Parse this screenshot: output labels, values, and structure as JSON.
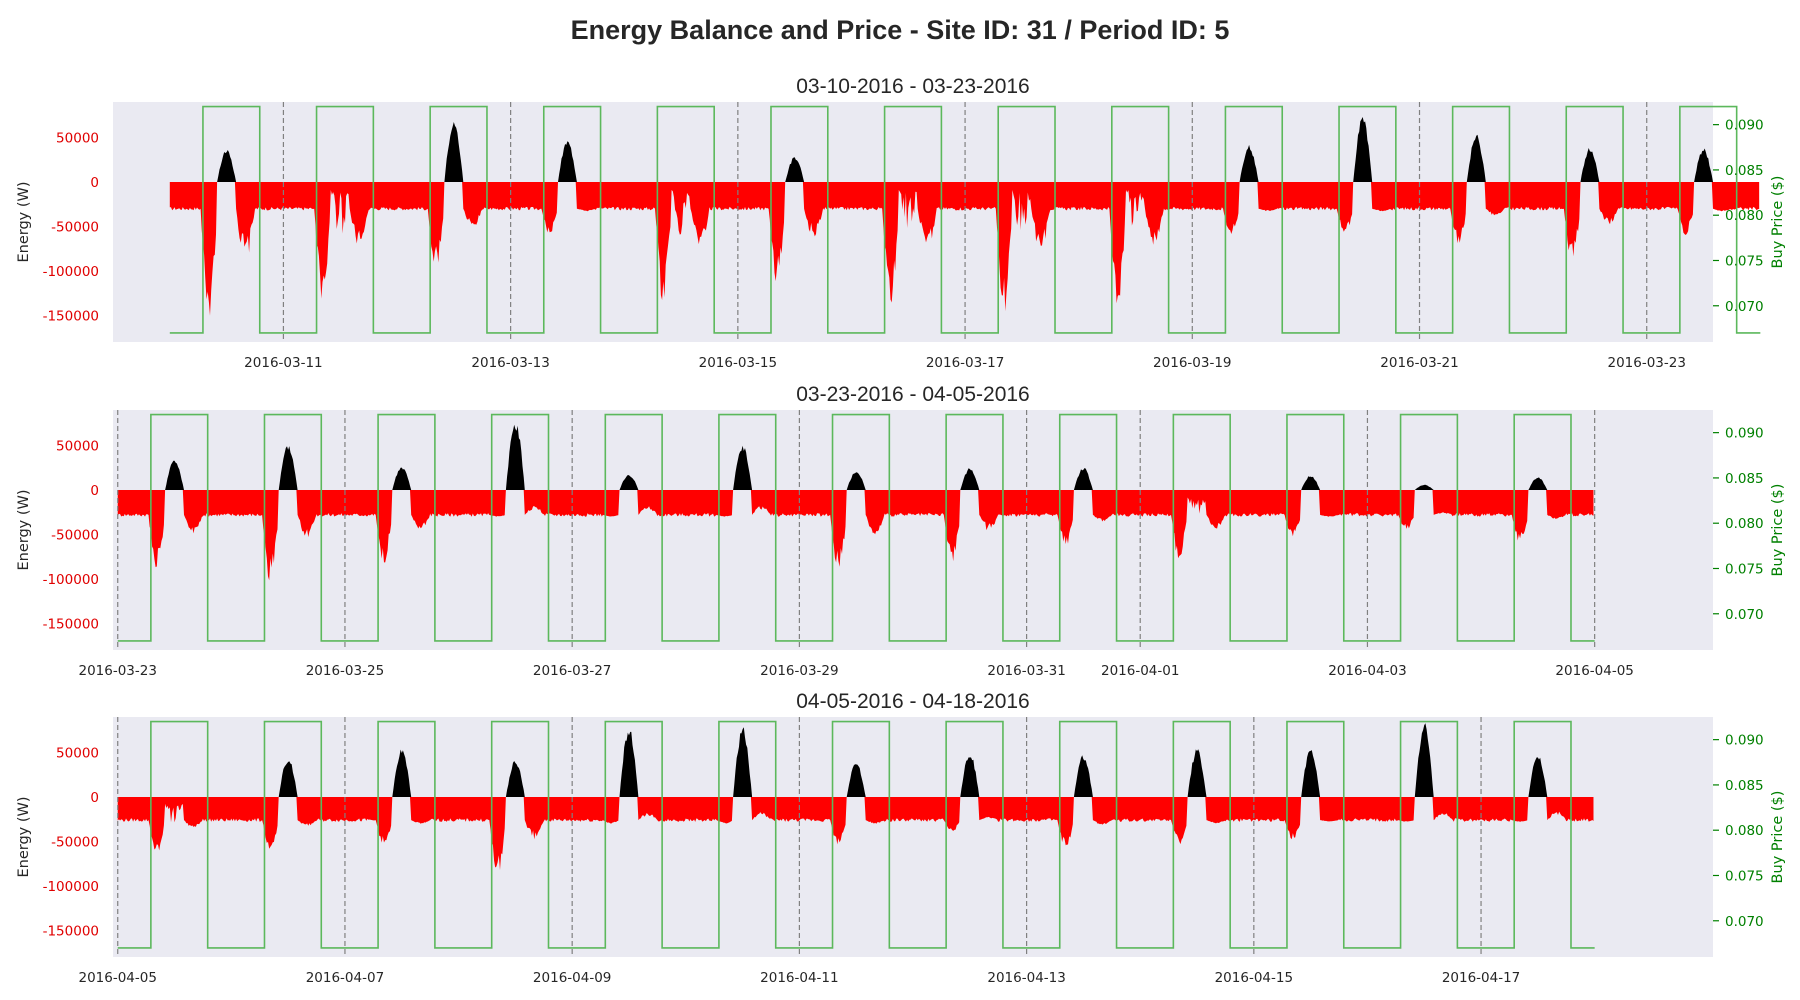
{
  "figure": {
    "title": "Energy Balance and Price - Site ID: 31 / Period ID: 5"
  },
  "colors": {
    "export_fill": "#000000",
    "import_fill": "#ff0000",
    "price_line": "#5cb85c",
    "panel_background": "#eaeaf2",
    "day_divider": "#808080",
    "left_tick_color": "#e00000",
    "right_axis_color": "#008000"
  },
  "chart_data": [
    {
      "type": "area",
      "title": "03-10-2016 - 03-23-2016",
      "x_start": "2016-03-10",
      "x_end": "2016-03-23",
      "xlim": [
        "2016-03-09T12:00",
        "2016-03-23T14:00"
      ],
      "x_ticks": [
        "2016-03-11",
        "2016-03-13",
        "2016-03-15",
        "2016-03-17",
        "2016-03-19",
        "2016-03-21",
        "2016-03-23"
      ],
      "day_dividers": [
        "2016-03-11",
        "2016-03-13",
        "2016-03-15",
        "2016-03-17",
        "2016-03-19",
        "2016-03-21",
        "2016-03-23"
      ],
      "ylabel": "Energy (W)",
      "ylim": [
        -180000,
        90000
      ],
      "y_ticks": [
        50000,
        0,
        -50000,
        -100000,
        -150000
      ],
      "y2label": "Buy Price ($)",
      "y2lim": [
        0.066,
        0.0925
      ],
      "y2_ticks": [
        0.07,
        0.075,
        0.08,
        0.085,
        0.09
      ],
      "price_schedule": {
        "low": 0.067,
        "high": 0.092,
        "high_from_hour": 7,
        "high_to_hour": 19
      },
      "series": [
        {
          "daily_peak_export_W": [
            37000,
            0,
            70000,
            48000,
            0,
            29000,
            0,
            0,
            0,
            42000,
            75000,
            55000,
            39000,
            39000
          ],
          "daily_peak_import_W": [
            -165000,
            -135000,
            -100000,
            -60000,
            -140000,
            -115000,
            -150000,
            -150000,
            -140000,
            -60000,
            -60000,
            -70000,
            -90000,
            -60000
          ],
          "night_baseline_W": -30000
        }
      ]
    },
    {
      "type": "area",
      "title": "03-23-2016 - 04-05-2016",
      "x_start": "2016-03-23",
      "x_end": "2016-04-05",
      "xlim": [
        "2016-03-22T23:00",
        "2016-04-06T01:00"
      ],
      "x_ticks": [
        "2016-03-23",
        "2016-03-25",
        "2016-03-27",
        "2016-03-29",
        "2016-03-31",
        "2016-04-01",
        "2016-04-03",
        "2016-04-05"
      ],
      "day_dividers": [
        "2016-03-23",
        "2016-03-25",
        "2016-03-27",
        "2016-03-29",
        "2016-03-31",
        "2016-04-01",
        "2016-04-03",
        "2016-04-05"
      ],
      "ylabel": "Energy (W)",
      "ylim": [
        -180000,
        90000
      ],
      "y_ticks": [
        50000,
        0,
        -50000,
        -100000,
        -150000
      ],
      "y2label": "Buy Price ($)",
      "y2lim": [
        0.066,
        0.0925
      ],
      "y2_ticks": [
        0.07,
        0.075,
        0.08,
        0.085,
        0.09
      ],
      "price_schedule": {
        "low": 0.067,
        "high": 0.092,
        "high_from_hour": 7,
        "high_to_hour": 19
      },
      "series": [
        {
          "daily_peak_export_W": [
            35000,
            52000,
            27000,
            80000,
            18000,
            52000,
            22000,
            25000,
            26000,
            0,
            17000,
            6000,
            15000
          ],
          "daily_peak_import_W": [
            -90000,
            -105000,
            -85000,
            -30000,
            -30000,
            -30000,
            -95000,
            -85000,
            -65000,
            -80000,
            -55000,
            -45000,
            -60000
          ],
          "night_baseline_W": -28000
        }
      ]
    },
    {
      "type": "area",
      "title": "04-05-2016 - 04-18-2016",
      "x_start": "2016-04-05",
      "x_end": "2016-04-18",
      "xlim": [
        "2016-04-04T23:00",
        "2016-04-19T01:00"
      ],
      "x_ticks": [
        "2016-04-05",
        "2016-04-07",
        "2016-04-09",
        "2016-04-11",
        "2016-04-13",
        "2016-04-15",
        "2016-04-17"
      ],
      "day_dividers": [
        "2016-04-05",
        "2016-04-07",
        "2016-04-09",
        "2016-04-11",
        "2016-04-13",
        "2016-04-15",
        "2016-04-17"
      ],
      "ylabel": "Energy (W)",
      "ylim": [
        -180000,
        90000
      ],
      "y_ticks": [
        50000,
        0,
        -50000,
        -100000,
        -150000
      ],
      "y2label": "Buy Price ($)",
      "y2lim": [
        0.066,
        0.0925
      ],
      "y2_ticks": [
        0.07,
        0.075,
        0.08,
        0.085,
        0.09
      ],
      "price_schedule": {
        "low": 0.067,
        "high": 0.092,
        "high_from_hour": 7,
        "high_to_hour": 19
      },
      "series": [
        {
          "daily_peak_export_W": [
            0,
            45000,
            55000,
            42000,
            80000,
            80000,
            40000,
            52000,
            48000,
            55000,
            55000,
            85000,
            48000
          ],
          "daily_peak_import_W": [
            -65000,
            -60000,
            -55000,
            -90000,
            -30000,
            -30000,
            -55000,
            -40000,
            -58000,
            -55000,
            -50000,
            -28000,
            -28000
          ],
          "night_baseline_W": -26000
        }
      ]
    }
  ]
}
